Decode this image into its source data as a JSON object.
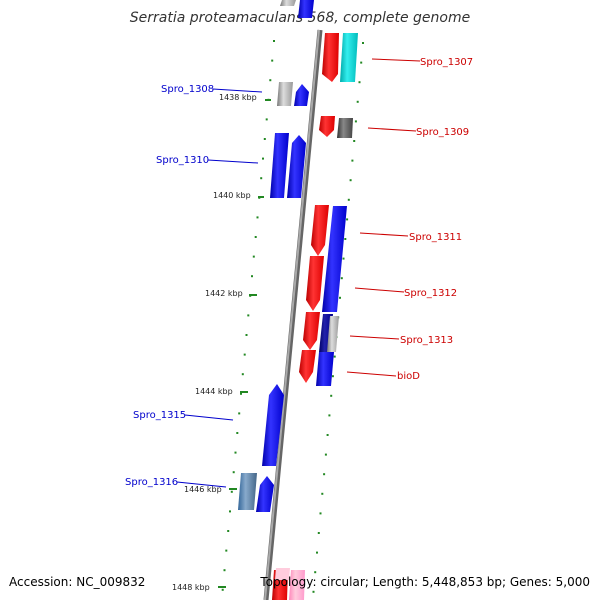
{
  "title": "Serratia proteamaculans 568, complete genome",
  "footer": {
    "accession": "Accession: NC_009832",
    "topology": "Topology: circular; Length: 5,448,853 bp; Genes: 5,000"
  },
  "colors": {
    "forward": "#0000ff",
    "reverse": "#ff0000",
    "forward_label": "#0000cc",
    "reverse_label": "#cc0000",
    "backbone": "#888888",
    "tick": "#228822"
  },
  "kbp_labels": [
    "1438 kbp",
    "1440 kbp",
    "1442 kbp",
    "1444 kbp",
    "1446 kbp",
    "1448 kbp"
  ],
  "gene_labels": {
    "left": [
      "Spro_1308",
      "Spro_1310",
      "Spro_1315",
      "Spro_1316"
    ],
    "right": [
      "Spro_1307",
      "Spro_1309",
      "Spro_1311",
      "Spro_1312",
      "Spro_1313",
      "bioD"
    ]
  }
}
